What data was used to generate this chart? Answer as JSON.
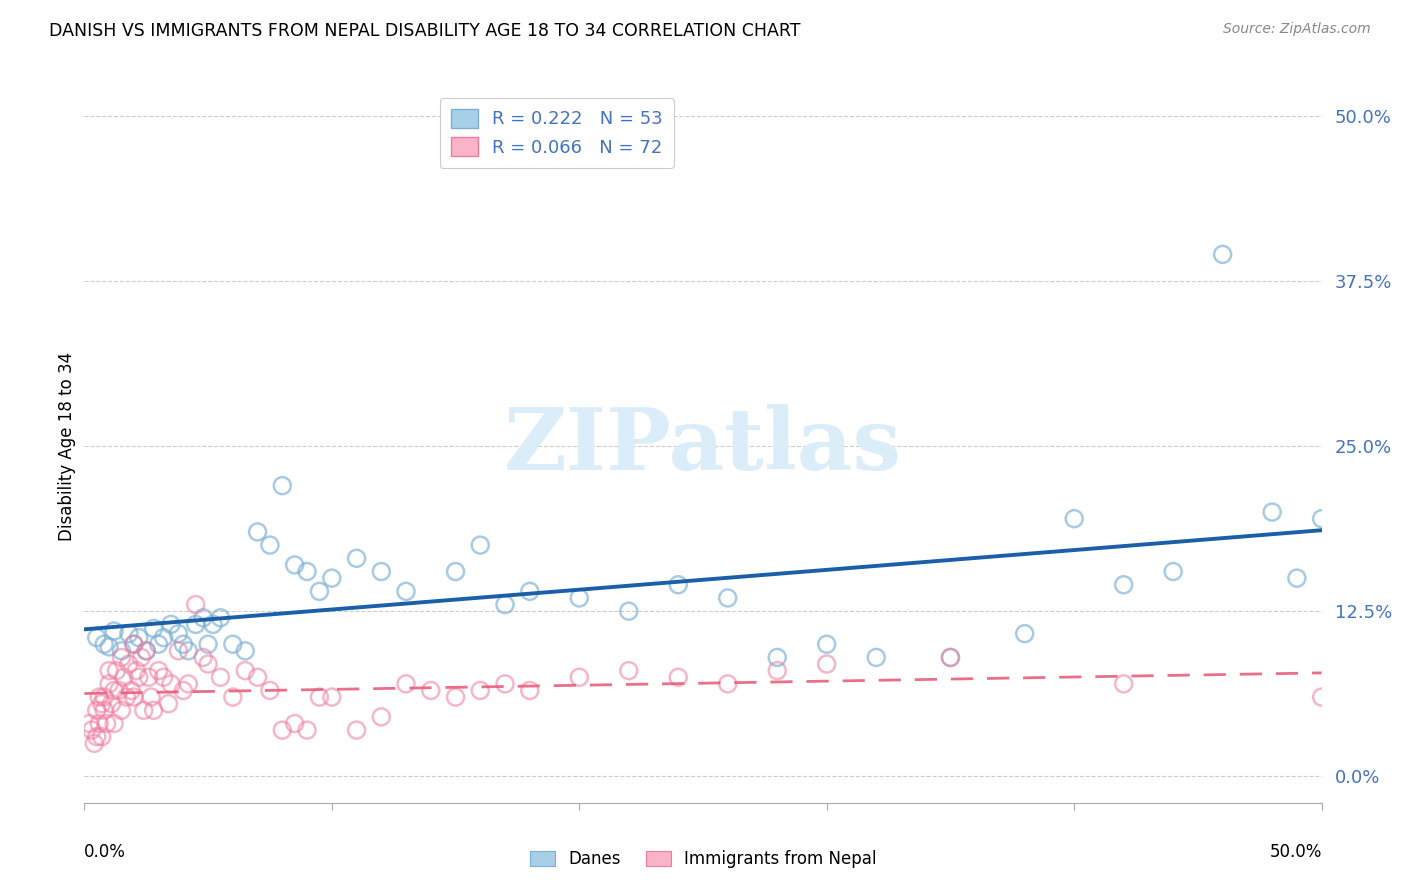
{
  "title": "DANISH VS IMMIGRANTS FROM NEPAL DISABILITY AGE 18 TO 34 CORRELATION CHART",
  "source": "Source: ZipAtlas.com",
  "ylabel": "Disability Age 18 to 34",
  "y_tick_labels": [
    "0.0%",
    "12.5%",
    "25.0%",
    "37.5%",
    "50.0%"
  ],
  "y_tick_values": [
    0.0,
    0.125,
    0.25,
    0.375,
    0.5
  ],
  "xlim": [
    0.0,
    0.5
  ],
  "ylim": [
    -0.02,
    0.52
  ],
  "legend_R1": "R = 0.222",
  "legend_N1": "N = 53",
  "legend_R2": "R = 0.066",
  "legend_N2": "N = 72",
  "legend_label1": "Danes",
  "legend_label2": "Immigrants from Nepal",
  "danes_color": "#a8cfe8",
  "nepal_color": "#f9b4c8",
  "danes_edge_color": "#7ab0d4",
  "nepal_edge_color": "#f07ba0",
  "danes_line_color": "#1a5fa8",
  "nepal_line_color": "#e8607a",
  "ytick_color": "#4472c4",
  "watermark_text": "ZIPatlas",
  "watermark_color": "#daedf8",
  "danes_x": [
    0.005,
    0.008,
    0.01,
    0.012,
    0.015,
    0.018,
    0.02,
    0.022,
    0.025,
    0.028,
    0.03,
    0.032,
    0.035,
    0.038,
    0.04,
    0.042,
    0.045,
    0.048,
    0.05,
    0.052,
    0.055,
    0.06,
    0.065,
    0.07,
    0.075,
    0.08,
    0.085,
    0.09,
    0.095,
    0.1,
    0.11,
    0.12,
    0.13,
    0.15,
    0.16,
    0.17,
    0.18,
    0.2,
    0.22,
    0.24,
    0.26,
    0.28,
    0.3,
    0.32,
    0.35,
    0.38,
    0.4,
    0.42,
    0.44,
    0.46,
    0.48,
    0.49,
    0.5
  ],
  "danes_y": [
    0.105,
    0.1,
    0.098,
    0.11,
    0.095,
    0.108,
    0.1,
    0.105,
    0.095,
    0.112,
    0.1,
    0.105,
    0.115,
    0.108,
    0.1,
    0.095,
    0.115,
    0.12,
    0.1,
    0.115,
    0.12,
    0.1,
    0.095,
    0.185,
    0.175,
    0.22,
    0.16,
    0.155,
    0.14,
    0.15,
    0.165,
    0.155,
    0.14,
    0.155,
    0.175,
    0.13,
    0.14,
    0.135,
    0.125,
    0.145,
    0.135,
    0.09,
    0.1,
    0.09,
    0.09,
    0.108,
    0.195,
    0.145,
    0.155,
    0.395,
    0.2,
    0.15,
    0.195
  ],
  "nepal_x": [
    0.002,
    0.003,
    0.004,
    0.005,
    0.005,
    0.006,
    0.006,
    0.007,
    0.007,
    0.008,
    0.008,
    0.009,
    0.01,
    0.01,
    0.011,
    0.012,
    0.012,
    0.013,
    0.014,
    0.015,
    0.015,
    0.016,
    0.017,
    0.018,
    0.019,
    0.02,
    0.02,
    0.021,
    0.022,
    0.023,
    0.024,
    0.025,
    0.026,
    0.027,
    0.028,
    0.03,
    0.032,
    0.034,
    0.035,
    0.038,
    0.04,
    0.042,
    0.045,
    0.048,
    0.05,
    0.055,
    0.06,
    0.065,
    0.07,
    0.075,
    0.08,
    0.085,
    0.09,
    0.095,
    0.1,
    0.11,
    0.12,
    0.13,
    0.14,
    0.15,
    0.16,
    0.17,
    0.18,
    0.2,
    0.22,
    0.24,
    0.26,
    0.28,
    0.3,
    0.35,
    0.42,
    0.5
  ],
  "nepal_y": [
    0.04,
    0.035,
    0.025,
    0.03,
    0.05,
    0.04,
    0.06,
    0.055,
    0.03,
    0.05,
    0.06,
    0.04,
    0.07,
    0.08,
    0.055,
    0.065,
    0.04,
    0.08,
    0.065,
    0.09,
    0.05,
    0.075,
    0.06,
    0.085,
    0.065,
    0.06,
    0.1,
    0.08,
    0.075,
    0.09,
    0.05,
    0.095,
    0.075,
    0.06,
    0.05,
    0.08,
    0.075,
    0.055,
    0.07,
    0.095,
    0.065,
    0.07,
    0.13,
    0.09,
    0.085,
    0.075,
    0.06,
    0.08,
    0.075,
    0.065,
    0.035,
    0.04,
    0.035,
    0.06,
    0.06,
    0.035,
    0.045,
    0.07,
    0.065,
    0.06,
    0.065,
    0.07,
    0.065,
    0.075,
    0.08,
    0.075,
    0.07,
    0.08,
    0.085,
    0.09,
    0.07,
    0.06
  ]
}
